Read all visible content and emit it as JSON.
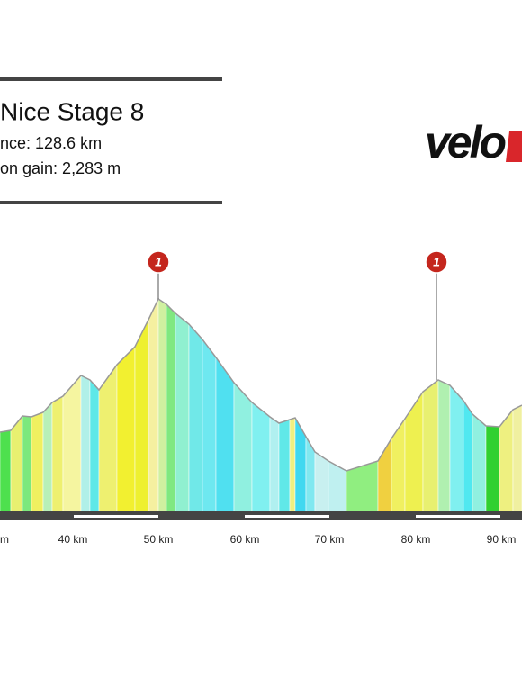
{
  "header": {
    "title": "Nice Stage 8",
    "distance": "nce: 128.6 km",
    "elevation": "on gain: 2,283 m"
  },
  "logo": {
    "text": "velo"
  },
  "profile": {
    "x_labels": [
      "m",
      "40 km",
      "50 km",
      "60 km",
      "70 km",
      "80 km",
      "90 km"
    ],
    "climb_markers": [
      "1",
      "1"
    ]
  }
}
